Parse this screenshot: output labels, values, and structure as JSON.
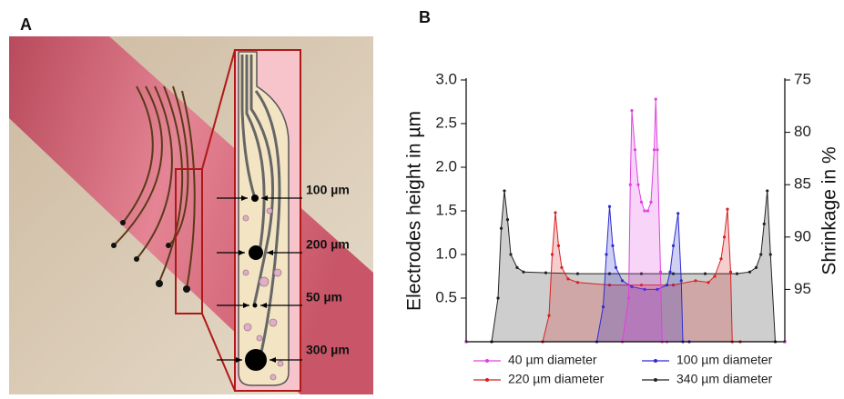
{
  "panel_a": {
    "label": "A",
    "annotations": [
      "100 µm",
      "200 µm",
      "50 µm",
      "300 µm"
    ]
  },
  "chart_data": {
    "type": "line",
    "panel_label": "B",
    "ylabel": "Electrodes height in µm",
    "y2label": "Shrinkage in %",
    "ylim": [
      0,
      3.0
    ],
    "yticks": [
      {
        "value": 3.0,
        "label": "3.0"
      },
      2.5,
      {
        "value": 2.0,
        "label": "2.0"
      },
      1.5,
      {
        "value": 1.0,
        "label": "1.0"
      },
      0.5
    ],
    "y2lim": [
      100,
      75
    ],
    "y2ticks": [
      75,
      80,
      85,
      90,
      95
    ],
    "xlim": [
      0,
      100
    ],
    "fill_area": true,
    "series": [
      {
        "name": "40 µm diameter",
        "color": "#e040e0",
        "x": [
          0,
          49,
          51,
          51.5,
          52,
          53,
          54,
          55,
          56,
          57,
          58,
          59,
          59.5,
          60,
          61,
          61.5,
          63,
          100
        ],
        "values": [
          0,
          0,
          0.5,
          1.8,
          2.65,
          2.2,
          1.8,
          1.6,
          1.5,
          1.5,
          1.6,
          2.2,
          2.78,
          2.2,
          0.8,
          0,
          0,
          0
        ]
      },
      {
        "name": "100 µm diameter",
        "color": "#2b2bd0",
        "x": [
          0,
          41,
          43,
          44,
          45,
          46,
          47,
          49,
          52,
          56,
          60,
          63,
          64,
          65,
          66.5,
          67.5,
          68,
          70,
          100
        ],
        "values": [
          0,
          0,
          0.4,
          1.0,
          1.55,
          1.1,
          0.85,
          0.7,
          0.63,
          0.6,
          0.6,
          0.65,
          0.8,
          1.1,
          1.47,
          0.7,
          0,
          0,
          0
        ]
      },
      {
        "name": "220 µm diameter",
        "color": "#d82020",
        "x": [
          0,
          24,
          26,
          27,
          28,
          29,
          30,
          32,
          35,
          45,
          55,
          65,
          72,
          76,
          78,
          80,
          81,
          82,
          83,
          83.5,
          86,
          100
        ],
        "values": [
          0,
          0,
          0.3,
          1.0,
          1.48,
          1.1,
          0.85,
          0.72,
          0.68,
          0.65,
          0.65,
          0.65,
          0.7,
          0.68,
          0.75,
          0.95,
          1.2,
          1.52,
          0.8,
          0,
          0,
          0
        ]
      },
      {
        "name": "340 µm diameter",
        "color": "#222222",
        "x": [
          0,
          8,
          10,
          11,
          12,
          13,
          14,
          16,
          18,
          25,
          35,
          45,
          55,
          65,
          75,
          85,
          89,
          91,
          92.5,
          93.5,
          94.5,
          95.5,
          97,
          100
        ],
        "values": [
          0,
          0,
          0.5,
          1.3,
          1.73,
          1.4,
          1.0,
          0.85,
          0.8,
          0.79,
          0.78,
          0.78,
          0.78,
          0.78,
          0.78,
          0.78,
          0.8,
          0.85,
          1.0,
          1.35,
          1.73,
          1.0,
          0,
          0
        ]
      }
    ]
  }
}
